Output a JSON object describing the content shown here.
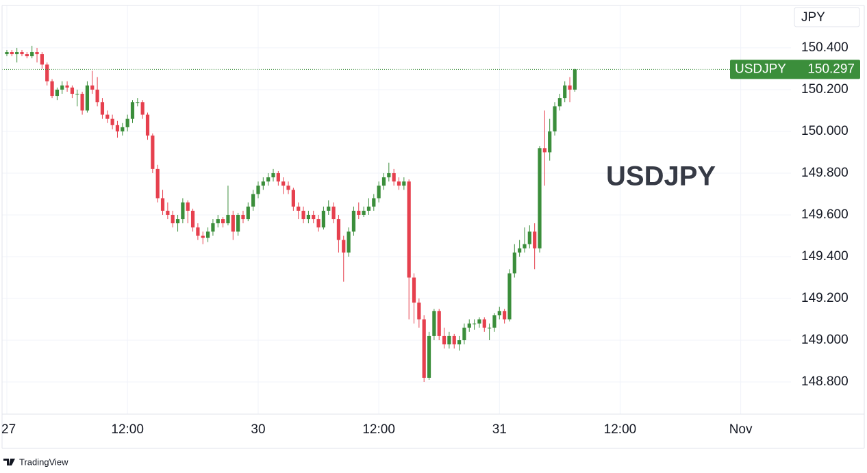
{
  "chart_data": {
    "type": "candlestick",
    "symbol": "USDJPY",
    "currency": "JPY",
    "brand": "TradingView",
    "last_price": 150.297,
    "up_color": "#3b8e3b",
    "down_color": "#e6404e",
    "grid": true,
    "ylim": [
      148.646,
      150.603
    ],
    "yticks": [
      {
        "value": 148.8,
        "label": "148.800"
      },
      {
        "value": 149.0,
        "label": "149.000"
      },
      {
        "value": 149.2,
        "label": "149.200"
      },
      {
        "value": 149.4,
        "label": "149.400"
      },
      {
        "value": 149.6,
        "label": "149.600"
      },
      {
        "value": 149.8,
        "label": "149.800"
      },
      {
        "value": 150.0,
        "label": "150.000"
      },
      {
        "value": 150.2,
        "label": "150.200"
      },
      {
        "value": 150.4,
        "label": "150.400"
      }
    ],
    "categories": [
      "27",
      null,
      null,
      null,
      null,
      null,
      null,
      null,
      null,
      null,
      null,
      null,
      null,
      null,
      null,
      null,
      null,
      null,
      null,
      null,
      null,
      null,
      null,
      null,
      "12:00",
      null,
      null,
      null,
      null,
      null,
      null,
      null,
      null,
      null,
      null,
      null,
      null,
      null,
      null,
      null,
      null,
      null,
      null,
      null,
      null,
      null,
      null,
      null,
      null,
      null,
      "30",
      null,
      null,
      null,
      null,
      null,
      null,
      null,
      null,
      null,
      null,
      null,
      null,
      null,
      null,
      null,
      null,
      null,
      null,
      null,
      null,
      null,
      null,
      null,
      "12:00",
      null,
      null,
      null,
      null,
      null,
      null,
      null,
      null,
      null,
      null,
      null,
      null,
      null,
      null,
      null,
      null,
      null,
      null,
      null,
      null,
      null,
      null,
      null,
      "31",
      null,
      null,
      null,
      null,
      null,
      null,
      null,
      null,
      null,
      null,
      null,
      null,
      null,
      null,
      null,
      null,
      null,
      null,
      null,
      null,
      null,
      null,
      null,
      "12:00",
      null,
      null,
      null,
      null,
      null,
      null,
      null,
      null,
      null,
      null,
      null,
      null,
      null,
      null,
      null,
      null,
      null,
      null,
      null,
      null,
      null,
      null,
      null,
      "Nov",
      null,
      null,
      null,
      null,
      null,
      null,
      null,
      null,
      null,
      null
    ],
    "open": [
      150.37,
      150.38,
      150.37,
      150.38,
      150.37,
      150.36,
      150.38,
      150.37,
      150.32,
      150.24,
      150.17,
      150.2,
      150.22,
      150.21,
      150.18,
      150.18,
      150.1,
      150.22,
      150.2,
      150.14,
      150.08,
      150.06,
      150.03,
      150.0,
      150.02,
      150.06,
      150.14,
      150.14,
      150.08,
      149.98,
      149.82,
      149.68,
      149.62,
      149.6,
      149.56,
      149.58,
      149.66,
      149.62,
      149.54,
      149.5,
      149.49,
      149.52,
      149.56,
      149.58,
      149.56,
      149.6,
      149.52,
      149.6,
      149.58,
      149.64,
      149.7,
      149.74,
      149.76,
      149.78,
      149.8,
      149.76,
      149.74,
      149.72,
      149.64,
      149.62,
      149.58,
      149.6,
      149.58,
      149.54,
      149.62,
      149.64,
      149.58,
      149.48,
      149.42,
      149.52,
      149.62,
      149.6,
      149.62,
      149.64,
      149.68,
      149.74,
      149.78,
      149.8,
      149.76,
      149.74,
      149.76,
      149.3,
      149.18,
      149.1,
      148.82,
      149.02,
      149.14,
      149.02,
      148.98,
      149.02,
      148.98,
      149.0,
      149.06,
      149.08,
      149.08,
      149.1,
      149.06,
      149.06,
      149.12,
      149.14,
      149.1,
      149.32,
      149.42,
      149.44,
      149.46,
      149.52,
      149.44,
      149.92,
      149.9,
      150.0,
      150.12,
      150.16,
      150.22,
      150.2,
      null,
      null,
      null,
      null,
      null,
      null,
      null,
      null,
      null,
      null,
      null,
      null,
      null,
      null,
      null,
      null,
      null,
      null,
      null,
      null,
      null,
      null,
      null,
      null,
      null,
      null,
      null,
      null,
      null,
      null,
      null,
      null,
      null,
      null,
      null,
      null,
      null,
      null,
      null,
      null,
      null,
      null,
      null
    ],
    "high": [
      150.39,
      150.39,
      150.4,
      150.39,
      150.38,
      150.41,
      150.4,
      150.38,
      150.33,
      150.25,
      150.21,
      150.24,
      150.24,
      150.22,
      150.2,
      150.19,
      150.24,
      150.29,
      150.26,
      150.16,
      150.1,
      150.08,
      150.05,
      150.04,
      150.08,
      150.15,
      150.16,
      150.15,
      150.09,
      149.99,
      149.84,
      149.72,
      149.66,
      149.62,
      149.6,
      149.68,
      149.67,
      149.63,
      149.56,
      149.52,
      149.54,
      149.58,
      149.6,
      149.59,
      149.74,
      149.62,
      149.61,
      149.62,
      149.66,
      149.72,
      149.76,
      149.78,
      149.8,
      149.82,
      149.81,
      149.78,
      149.76,
      149.73,
      149.66,
      149.64,
      149.62,
      149.62,
      149.6,
      149.64,
      149.67,
      149.66,
      149.6,
      149.5,
      149.54,
      149.64,
      149.66,
      149.64,
      149.68,
      149.7,
      149.76,
      149.8,
      149.85,
      149.82,
      149.78,
      149.78,
      149.77,
      149.32,
      149.2,
      149.12,
      149.04,
      149.15,
      149.15,
      149.06,
      149.04,
      149.03,
      149.02,
      149.08,
      149.1,
      149.1,
      149.11,
      149.11,
      149.08,
      149.13,
      149.16,
      149.15,
      149.34,
      149.46,
      149.48,
      149.54,
      149.55,
      149.56,
      149.93,
      150.1,
      150.06,
      150.14,
      150.18,
      150.24,
      150.26,
      150.3,
      null,
      null,
      null,
      null,
      null,
      null,
      null,
      null,
      null,
      null,
      null,
      null,
      null,
      null,
      null,
      null,
      null,
      null,
      null,
      null,
      null,
      null,
      null,
      null,
      null,
      null,
      null,
      null,
      null,
      null,
      null,
      null,
      null,
      null,
      null,
      null,
      null,
      null,
      null,
      null,
      null,
      null,
      null
    ],
    "low": [
      150.36,
      150.36,
      150.33,
      150.36,
      150.35,
      150.35,
      150.33,
      150.3,
      150.22,
      150.16,
      150.15,
      150.18,
      150.19,
      150.16,
      150.12,
      150.08,
      150.09,
      150.18,
      150.12,
      150.06,
      150.04,
      150.01,
      149.97,
      149.98,
      150.0,
      150.04,
      150.12,
      150.06,
      149.96,
      149.8,
      149.66,
      149.6,
      149.58,
      149.54,
      149.52,
      149.56,
      149.56,
      149.52,
      149.48,
      149.46,
      149.47,
      149.5,
      149.54,
      149.54,
      149.55,
      149.48,
      149.5,
      149.56,
      149.57,
      149.62,
      149.68,
      149.72,
      149.74,
      149.76,
      149.74,
      149.7,
      149.7,
      149.62,
      149.58,
      149.56,
      149.56,
      149.56,
      149.52,
      149.53,
      149.6,
      149.56,
      149.42,
      149.28,
      149.4,
      149.5,
      149.58,
      149.59,
      149.6,
      149.62,
      149.66,
      149.72,
      149.76,
      149.74,
      149.72,
      149.72,
      149.1,
      149.08,
      149.06,
      148.8,
      148.81,
      149.0,
      149.0,
      148.96,
      148.96,
      148.96,
      148.95,
      148.98,
      149.04,
      149.05,
      149.06,
      149.04,
      149.0,
      149.04,
      149.1,
      149.08,
      149.09,
      149.3,
      149.4,
      149.42,
      149.44,
      149.34,
      149.42,
      149.74,
      149.86,
      149.98,
      150.1,
      150.14,
      150.14,
      150.19,
      null,
      null,
      null,
      null,
      null,
      null,
      null,
      null,
      null,
      null,
      null,
      null,
      null,
      null,
      null,
      null,
      null,
      null,
      null,
      null,
      null,
      null,
      null,
      null,
      null,
      null,
      null,
      null,
      null,
      null,
      null,
      null,
      null,
      null,
      null,
      null,
      null,
      null,
      null,
      null,
      null,
      null,
      null
    ],
    "close": [
      150.38,
      150.37,
      150.38,
      150.37,
      150.36,
      150.38,
      150.37,
      150.32,
      150.24,
      150.17,
      150.2,
      150.22,
      150.21,
      150.18,
      150.18,
      150.1,
      150.22,
      150.2,
      150.14,
      150.08,
      150.06,
      150.03,
      150.0,
      150.02,
      150.06,
      150.14,
      150.14,
      150.08,
      149.98,
      149.82,
      149.68,
      149.62,
      149.6,
      149.56,
      149.58,
      149.66,
      149.62,
      149.54,
      149.5,
      149.49,
      149.52,
      149.56,
      149.58,
      149.56,
      149.6,
      149.52,
      149.6,
      149.58,
      149.64,
      149.7,
      149.74,
      149.76,
      149.78,
      149.8,
      149.76,
      149.74,
      149.72,
      149.64,
      149.62,
      149.58,
      149.6,
      149.58,
      149.54,
      149.62,
      149.64,
      149.58,
      149.48,
      149.42,
      149.52,
      149.62,
      149.6,
      149.62,
      149.64,
      149.68,
      149.74,
      149.78,
      149.8,
      149.76,
      149.74,
      149.76,
      149.3,
      149.18,
      149.1,
      148.82,
      149.02,
      149.14,
      149.02,
      148.98,
      149.02,
      148.98,
      149.0,
      149.06,
      149.08,
      149.08,
      149.1,
      149.06,
      149.06,
      149.12,
      149.14,
      149.1,
      149.32,
      149.42,
      149.44,
      149.46,
      149.52,
      149.44,
      149.92,
      149.9,
      150.0,
      150.12,
      150.16,
      150.22,
      150.2,
      150.297,
      null,
      null,
      null,
      null,
      null,
      null,
      null,
      null,
      null,
      null,
      null,
      null,
      null,
      null,
      null,
      null,
      null,
      null,
      null,
      null,
      null,
      null,
      null,
      null,
      null,
      null,
      null,
      null,
      null,
      null,
      null,
      null,
      null,
      null,
      null,
      null,
      null,
      null,
      null,
      null,
      null,
      null,
      null
    ]
  }
}
